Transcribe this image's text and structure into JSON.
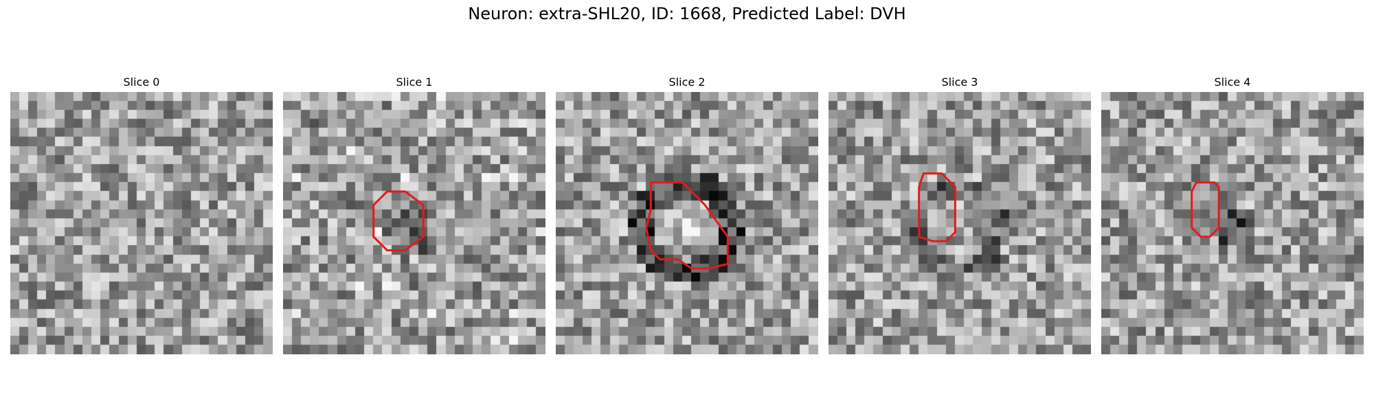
{
  "figure": {
    "title": "Neuron: extra-SHL20, ID: 1668, Predicted Label: DVH"
  },
  "colors": {
    "contour": "#e41a1c",
    "colormap": "gray"
  },
  "panels": [
    {
      "title": "Slice 0",
      "has_contour": false
    },
    {
      "title": "Slice 1",
      "has_contour": true
    },
    {
      "title": "Slice 2",
      "has_contour": true
    },
    {
      "title": "Slice 3",
      "has_contour": true
    },
    {
      "title": "Slice 4",
      "has_contour": true
    }
  ]
}
